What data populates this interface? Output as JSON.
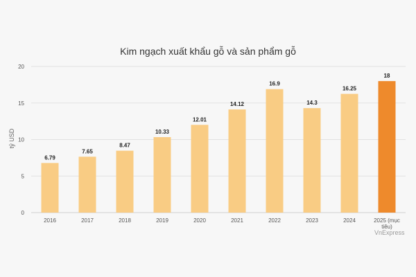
{
  "chart_data": {
    "type": "bar",
    "title": "Kim ngạch xuất khẩu gỗ và sản phẩm gỗ",
    "ylabel": "tỷ USD",
    "xlabel": "",
    "ylim": [
      0,
      20
    ],
    "yticks": [
      0,
      5,
      10,
      15,
      20
    ],
    "grid": true,
    "categories": [
      "2016",
      "2017",
      "2018",
      "2019",
      "2020",
      "2021",
      "2022",
      "2023",
      "2024",
      "2025 (mục tiêu)"
    ],
    "values": [
      6.79,
      7.65,
      8.47,
      10.33,
      12.01,
      14.12,
      16.9,
      14.3,
      16.25,
      18
    ],
    "value_labels": [
      "6.79",
      "7.65",
      "8.47",
      "10.33",
      "12.01",
      "14.12",
      "16.9",
      "14.3",
      "16.25",
      "18"
    ],
    "colors": {
      "default_bar": "#f9cc84",
      "highlight_bar": "#ee8a2c",
      "highlight_index": 9,
      "grid": "#e2e2e2"
    }
  },
  "source": "VnExpress"
}
